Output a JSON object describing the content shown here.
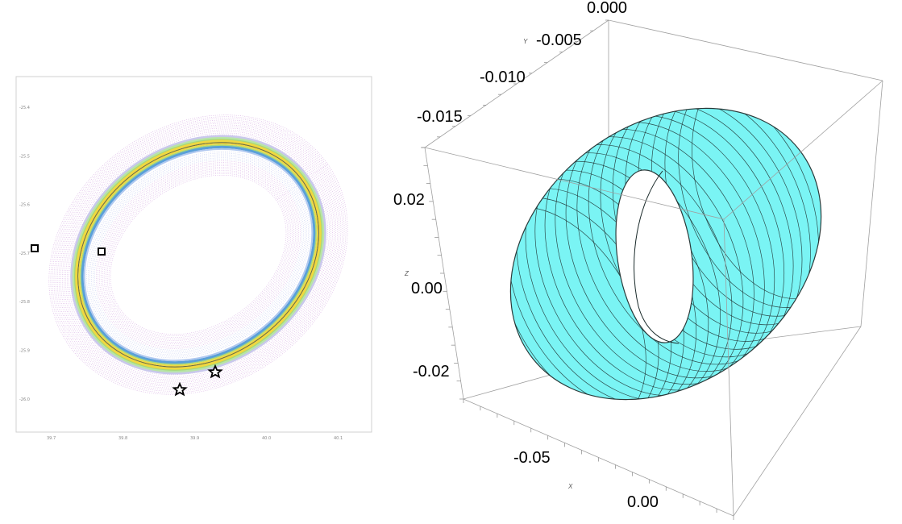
{
  "left_panel": {
    "x_ticks": [
      "39.7",
      "39.8",
      "39.9",
      "40.0",
      "40.1"
    ],
    "y_ticks": [
      "-25.4",
      "-25.5",
      "-25.6",
      "-25.7",
      "-25.8",
      "-25.9",
      "-26.0"
    ],
    "markers": {
      "squares": 2,
      "stars": 2
    },
    "colors": {
      "outer_band": "#c890d8",
      "inner_band": "#a8b4e8",
      "ridge_yellow": "#f0d840",
      "ridge_green": "#a8d878",
      "ridge_blue": "#5aa0d8"
    }
  },
  "right_panel": {
    "top_label": "0.000",
    "y_ticks": [
      "-0.005",
      "-0.010",
      "-0.015"
    ],
    "z_ticks": [
      "0.02",
      "0.00",
      "-0.02"
    ],
    "x_ticks": [
      "-0.05",
      "0.00"
    ],
    "axis_names": {
      "x": "X",
      "y": "Y",
      "z": "Z"
    },
    "colors": {
      "torus_fill": "#7af4f4",
      "torus_edge": "#2a3a3a",
      "box_edge": "#9a9a9a"
    }
  }
}
